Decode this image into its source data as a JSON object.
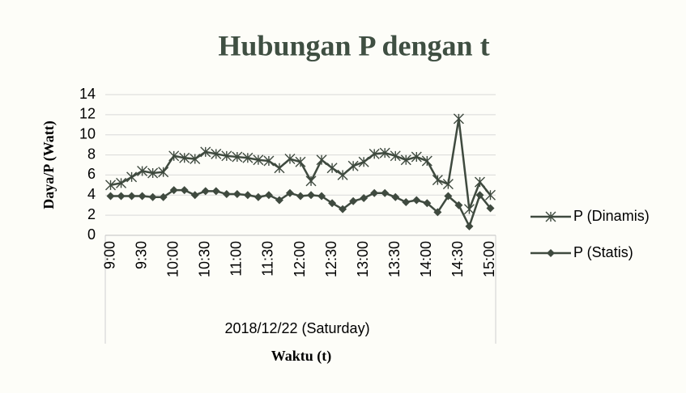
{
  "chart_data": {
    "type": "line",
    "title": "Hubungan P dengan t",
    "y_label": "Daya/P (Watt)",
    "x_label": "Waktu (t)",
    "x_group_label": "2018/12/22 (Saturday)",
    "categories": [
      "9:00",
      null,
      null,
      "9:30",
      null,
      null,
      "10:00",
      null,
      null,
      "10:30",
      null,
      null,
      "11:00",
      null,
      null,
      "11:30",
      null,
      null,
      "12:00",
      null,
      null,
      "12:30",
      null,
      null,
      "13:00",
      null,
      null,
      "13:30",
      null,
      null,
      "14:00",
      null,
      null,
      "14:30",
      null,
      null,
      "15:00"
    ],
    "series": [
      {
        "name": "P (Dinamis)",
        "color": "#3f4a3f",
        "marker": "star",
        "values": [
          5.0,
          5.2,
          5.8,
          6.4,
          6.2,
          6.3,
          7.9,
          7.7,
          7.6,
          8.3,
          8.1,
          7.9,
          7.8,
          7.7,
          7.5,
          7.4,
          6.7,
          7.6,
          7.3,
          5.4,
          7.5,
          6.7,
          6.0,
          6.9,
          7.3,
          8.1,
          8.2,
          7.9,
          7.5,
          7.8,
          7.4,
          5.5,
          5.1,
          11.6,
          2.6,
          5.3,
          4.0
        ]
      },
      {
        "name": "P (Statis)",
        "color": "#3f4a3f",
        "marker": "diamond",
        "values": [
          3.9,
          3.9,
          3.9,
          3.9,
          3.8,
          3.8,
          4.5,
          4.5,
          4.0,
          4.4,
          4.4,
          4.1,
          4.1,
          4.0,
          3.8,
          4.0,
          3.5,
          4.2,
          3.9,
          4.0,
          3.9,
          3.2,
          2.6,
          3.4,
          3.7,
          4.2,
          4.2,
          3.8,
          3.3,
          3.5,
          3.2,
          2.3,
          3.9,
          3.0,
          0.9,
          4.0,
          2.7
        ]
      }
    ],
    "ylim": [
      0,
      14
    ],
    "yticks": [
      0,
      2,
      4,
      6,
      8,
      10,
      12,
      14
    ],
    "grid": true,
    "legend": "right"
  }
}
